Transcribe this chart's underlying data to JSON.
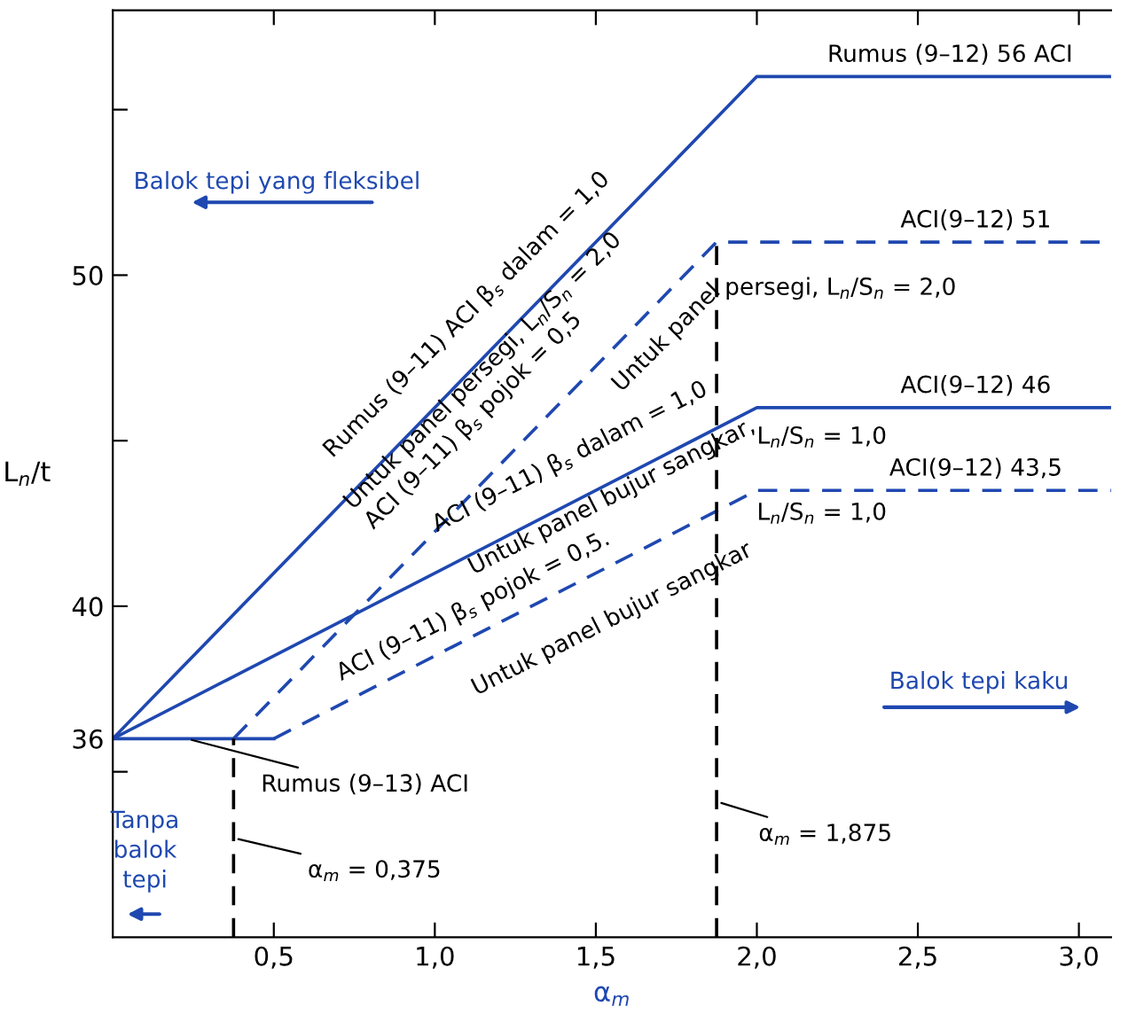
{
  "chart_data": {
    "type": "line",
    "xlabel": "α$_{m}$",
    "ylabel": "L$_{n}$/t",
    "xlim": [
      0,
      3.1
    ],
    "ylim": [
      30,
      58
    ],
    "xticks": [
      {
        "value": 0.5,
        "label": "0,5"
      },
      {
        "value": 1.0,
        "label": "1,0"
      },
      {
        "value": 1.5,
        "label": "1,5"
      },
      {
        "value": 2.0,
        "label": "2,0"
      },
      {
        "value": 2.5,
        "label": "2,5"
      },
      {
        "value": 3.0,
        "label": "3,0"
      }
    ],
    "yticks": [
      {
        "value": 35,
        "label": null
      },
      36,
      40,
      {
        "value": 45,
        "label": null
      },
      50,
      {
        "value": 55,
        "label": null
      }
    ],
    "grid": false,
    "legend": false,
    "marker": "none",
    "series": [
      {
        "color": "#1f48b0",
        "x": [
          0,
          2.0,
          3.1
        ],
        "values": [
          36,
          56,
          56
        ],
        "line_style": "solid"
      },
      {
        "color": "#1f48b0",
        "x": [
          0.375,
          1.875,
          3.1
        ],
        "values": [
          36,
          51,
          51
        ],
        "line_style": "dashed"
      },
      {
        "color": "#1f48b0",
        "x": [
          0,
          2.0,
          3.1
        ],
        "values": [
          36,
          46,
          46
        ],
        "line_style": "solid"
      },
      {
        "color": "#1f48b0",
        "x": [
          0.5,
          2.0,
          3.1
        ],
        "values": [
          36,
          43.5,
          43.5
        ],
        "line_style": "dashed"
      },
      {
        "color": "#1f48b0",
        "x": [
          0,
          0.5
        ],
        "values": [
          36,
          36
        ],
        "line_style": "solid"
      },
      {
        "color": "#000000",
        "x": [
          0.375,
          0.375
        ],
        "values": [
          30,
          36
        ],
        "line_style": "dashed"
      },
      {
        "color": "#000000",
        "x": [
          1.875,
          1.875
        ],
        "values": [
          30,
          51
        ],
        "line_style": "dashed"
      }
    ],
    "annotations": [
      "Rumus (9–12) 56 ACI",
      "ACI(9–12) 51",
      "persegi, L$_{n}$/S$_{n}$ = 2,0",
      "ACI(9–12) 46",
      "L$_{n}$/S$_{n}$ = 1,0",
      "ACI(9–12) 43,5",
      "L$_{n}$/S$_{n}$ = 1,0",
      "Rumus (9–11) ACI β$_{s}$ dalam = 1,0",
      "Untuk panel persegi, L$_{n}$/S$_{n}$ = 2,0",
      "ACI (9–11) β$_{s}$ pojok = 0,5",
      "Untuk panel",
      "ACI (9–11) β$_{s}$ dalam = 1,0",
      "Untuk panel bujur sangkar,",
      "ACI (9–11) β$_{s}$ pojok = 0,5.",
      "Untuk panel bujur sangkar",
      {
        "text": "Rumus (9–13) ACI",
        "x": 0.23,
        "y": 36
      },
      {
        "text": "α$_{m}$ = 0,375",
        "x": 0.375,
        "y": 33.0
      },
      {
        "text": "α$_{m}$ = 1,875",
        "x": 1.875,
        "y": 34.1
      },
      "Balok tepi yang fleksibel",
      "Balok tepi kaku",
      "Tanpa\nbalok\ntepi"
    ]
  }
}
